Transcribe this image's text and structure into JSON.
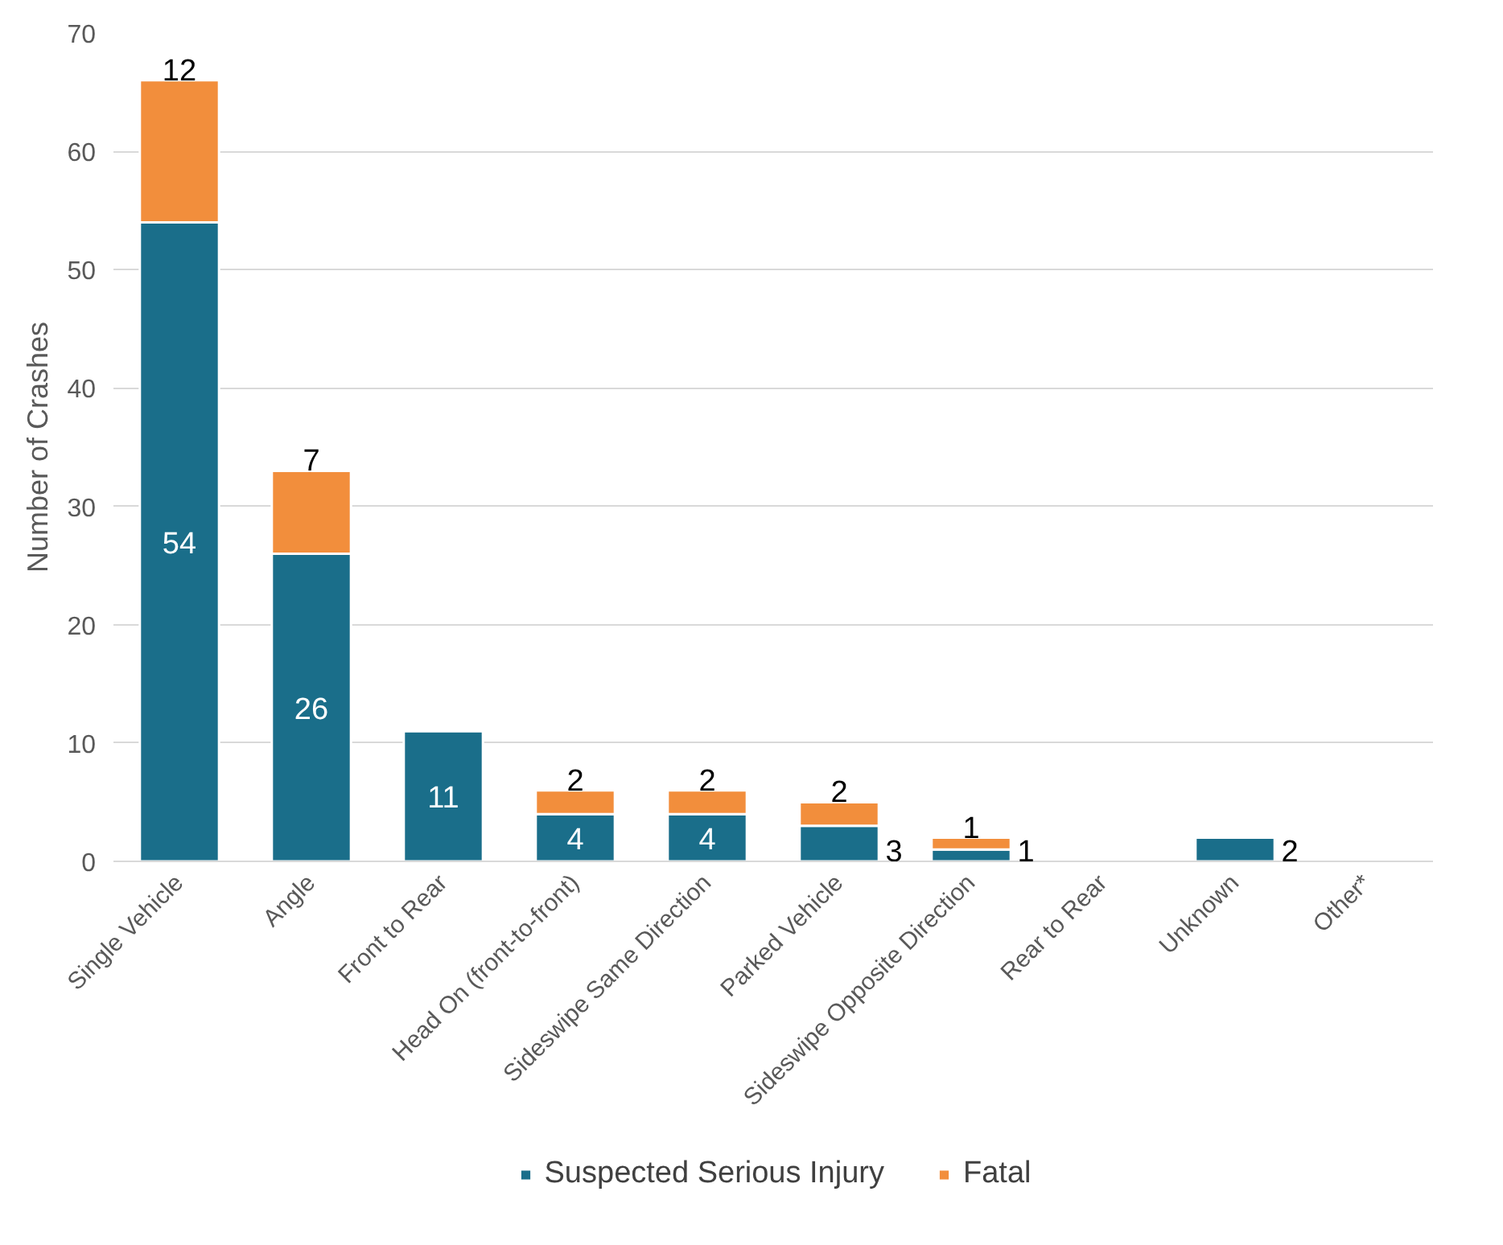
{
  "chart_data": {
    "type": "bar",
    "stacked": true,
    "ylabel": "Number of Crashes",
    "categories": [
      "Single Vehicle",
      "Angle",
      "Front to Rear",
      "Head On (front-to-front)",
      "Sideswipe Same Direction",
      "Parked Vehicle",
      "Sideswipe Opposite Direction",
      "Rear to Rear",
      "Unknown",
      "Other*"
    ],
    "series": [
      {
        "name": "Suspected Serious Injury",
        "color": "#1a6e8a",
        "values": [
          54,
          26,
          11,
          4,
          4,
          3,
          1,
          0,
          2,
          0
        ],
        "value_labels": [
          "54",
          "26",
          "11",
          "4",
          "4",
          "3",
          "1",
          null,
          "2",
          null
        ]
      },
      {
        "name": "Fatal",
        "color": "#f28e3c",
        "values": [
          12,
          7,
          0,
          2,
          2,
          2,
          1,
          0,
          0,
          0
        ],
        "value_labels": [
          "12",
          "7",
          null,
          "2",
          "2",
          "2",
          "1",
          null,
          null,
          null
        ]
      }
    ],
    "ylim": [
      0,
      70
    ],
    "yticks": [
      0,
      10,
      20,
      30,
      40,
      50,
      60,
      70
    ],
    "grid": "y",
    "legend": "bottom"
  }
}
